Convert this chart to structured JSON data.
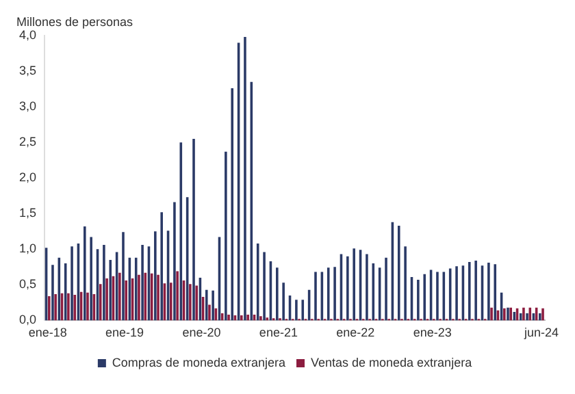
{
  "chart_data": {
    "type": "bar",
    "ylabel": "Millones de personas",
    "categories": [
      "ene-18",
      null,
      null,
      null,
      null,
      null,
      null,
      null,
      null,
      null,
      null,
      null,
      "ene-19",
      null,
      null,
      null,
      null,
      null,
      null,
      null,
      null,
      null,
      null,
      null,
      "ene-20",
      null,
      null,
      null,
      null,
      null,
      null,
      null,
      null,
      null,
      null,
      null,
      "ene-21",
      null,
      null,
      null,
      null,
      null,
      null,
      null,
      null,
      null,
      null,
      null,
      "ene-22",
      null,
      null,
      null,
      null,
      null,
      null,
      null,
      null,
      null,
      null,
      null,
      "ene-23",
      null,
      null,
      null,
      null,
      null,
      null,
      null,
      null,
      null,
      null,
      null,
      null,
      null,
      null,
      null,
      null,
      "jun-24"
    ],
    "series": [
      {
        "name": "Compras de moneda extranjera",
        "color": "#2b3a67",
        "values": [
          1.02,
          0.78,
          0.88,
          0.8,
          1.04,
          1.08,
          1.32,
          1.17,
          1.0,
          1.06,
          0.85,
          0.96,
          1.24,
          0.88,
          0.88,
          1.06,
          1.04,
          1.25,
          1.52,
          1.26,
          1.66,
          2.5,
          1.73,
          2.55,
          0.6,
          0.43,
          0.42,
          1.17,
          2.37,
          3.26,
          3.9,
          3.98,
          3.35,
          1.08,
          0.96,
          0.83,
          0.74,
          0.53,
          0.35,
          0.29,
          0.29,
          0.43,
          0.68,
          0.68,
          0.74,
          0.75,
          0.93,
          0.9,
          1.01,
          0.99,
          0.93,
          0.8,
          0.74,
          0.88,
          1.38,
          1.33,
          1.04,
          0.61,
          0.57,
          0.65,
          0.71,
          0.68,
          0.68,
          0.73,
          0.76,
          0.77,
          0.82,
          0.84,
          0.77,
          0.81,
          0.79,
          0.39,
          0.18,
          0.12,
          0.1,
          0.1,
          0.1,
          0.1
        ]
      },
      {
        "name": "Ventas de moneda extranjera",
        "color": "#8c1d40",
        "values": [
          0.34,
          0.37,
          0.38,
          0.38,
          0.36,
          0.4,
          0.39,
          0.37,
          0.51,
          0.59,
          0.62,
          0.67,
          0.56,
          0.59,
          0.64,
          0.67,
          0.66,
          0.64,
          0.52,
          0.53,
          0.69,
          0.56,
          0.51,
          0.49,
          0.33,
          0.22,
          0.17,
          0.1,
          0.08,
          0.07,
          0.07,
          0.08,
          0.08,
          0.06,
          0.04,
          0.03,
          0.03,
          0.02,
          0.02,
          0.02,
          0.02,
          0.02,
          0.02,
          0.02,
          0.02,
          0.02,
          0.02,
          0.02,
          0.02,
          0.02,
          0.02,
          0.02,
          0.02,
          0.02,
          0.02,
          0.02,
          0.02,
          0.02,
          0.02,
          0.02,
          0.02,
          0.02,
          0.02,
          0.02,
          0.02,
          0.02,
          0.02,
          0.02,
          0.02,
          0.18,
          0.14,
          0.17,
          0.18,
          0.17,
          0.18,
          0.18,
          0.18,
          0.17
        ]
      }
    ],
    "ylim": [
      0,
      4
    ],
    "yticks": [
      {
        "value": 0,
        "label": "0,0"
      },
      {
        "value": 0.5,
        "label": "0,5"
      },
      {
        "value": 1,
        "label": "1,0"
      },
      {
        "value": 1.5,
        "label": "1,5"
      },
      {
        "value": 2,
        "label": "2,0"
      },
      {
        "value": 2.5,
        "label": "2,5"
      },
      {
        "value": 3,
        "label": "3,0"
      },
      {
        "value": 3.5,
        "label": "3,5"
      },
      {
        "value": 4,
        "label": "4,0"
      }
    ],
    "grid": false,
    "legend": "bottom"
  }
}
